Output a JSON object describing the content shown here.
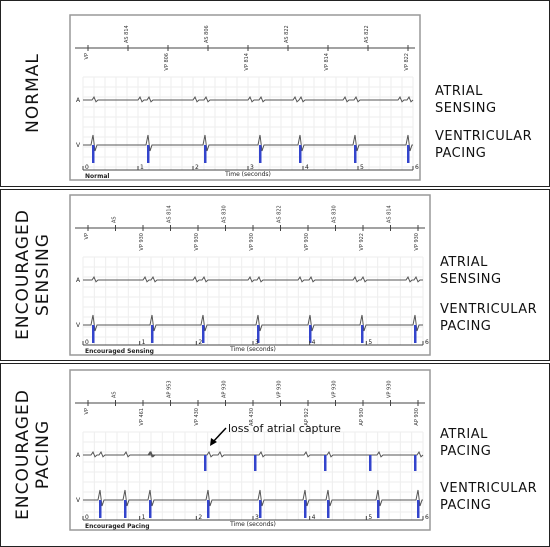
{
  "panels": [
    {
      "title": [
        "NORMAL"
      ],
      "strip_label": "Normal",
      "time_label": "Time (seconds)",
      "time_ticks": [
        "0",
        "1",
        "2",
        "3",
        "4",
        "5",
        "6"
      ],
      "channels": [
        "A",
        "V"
      ],
      "top_markers": [
        "VP",
        "AS 814",
        "VP 806",
        "AS 806",
        "VP 814",
        "AS 822",
        "VP 814",
        "AS 822",
        "VP 822"
      ],
      "right_labels": [
        [
          "ATRIAL",
          "SENSING"
        ],
        [
          "VENTRICULAR",
          "PACING"
        ]
      ]
    },
    {
      "title": [
        "ENCOURAGED",
        "SENSING"
      ],
      "strip_label": "Encouraged Sensing",
      "time_label": "Time (seconds)",
      "time_ticks": [
        "0",
        "1",
        "2",
        "3",
        "4",
        "5",
        "6"
      ],
      "channels": [
        "A",
        "V"
      ],
      "top_markers": [
        "VP",
        "AS",
        "VP 930",
        "AS 814",
        "VP 930",
        "AS 830",
        "VP 930",
        "AS 822",
        "VP 930",
        "AS 830",
        "VP 922",
        "AS 814",
        "VP 930"
      ],
      "right_labels": [
        [
          "ATRIAL",
          "SENSING"
        ],
        [
          "VENTRICULAR",
          "PACING"
        ]
      ]
    },
    {
      "title": [
        "ENCOURAGED",
        "PACING"
      ],
      "strip_label": "Encouraged Pacing",
      "time_label": "Time (seconds)",
      "time_ticks": [
        "0",
        "1",
        "2",
        "3",
        "4",
        "5",
        "6"
      ],
      "channels": [
        "A",
        "V"
      ],
      "top_markers": [
        "VP",
        "AS",
        "VP 461",
        "AP 953",
        "VP 430",
        "AP 930",
        "AR 430",
        "VP 930",
        "AP 922",
        "VP 930",
        "AP 930",
        "VP 930",
        "AP 930"
      ],
      "right_labels": [
        [
          "ATRIAL",
          "PACING"
        ],
        [
          "VENTRICULAR",
          "PACING"
        ]
      ]
    }
  ],
  "annotation": "loss of atrial capture"
}
